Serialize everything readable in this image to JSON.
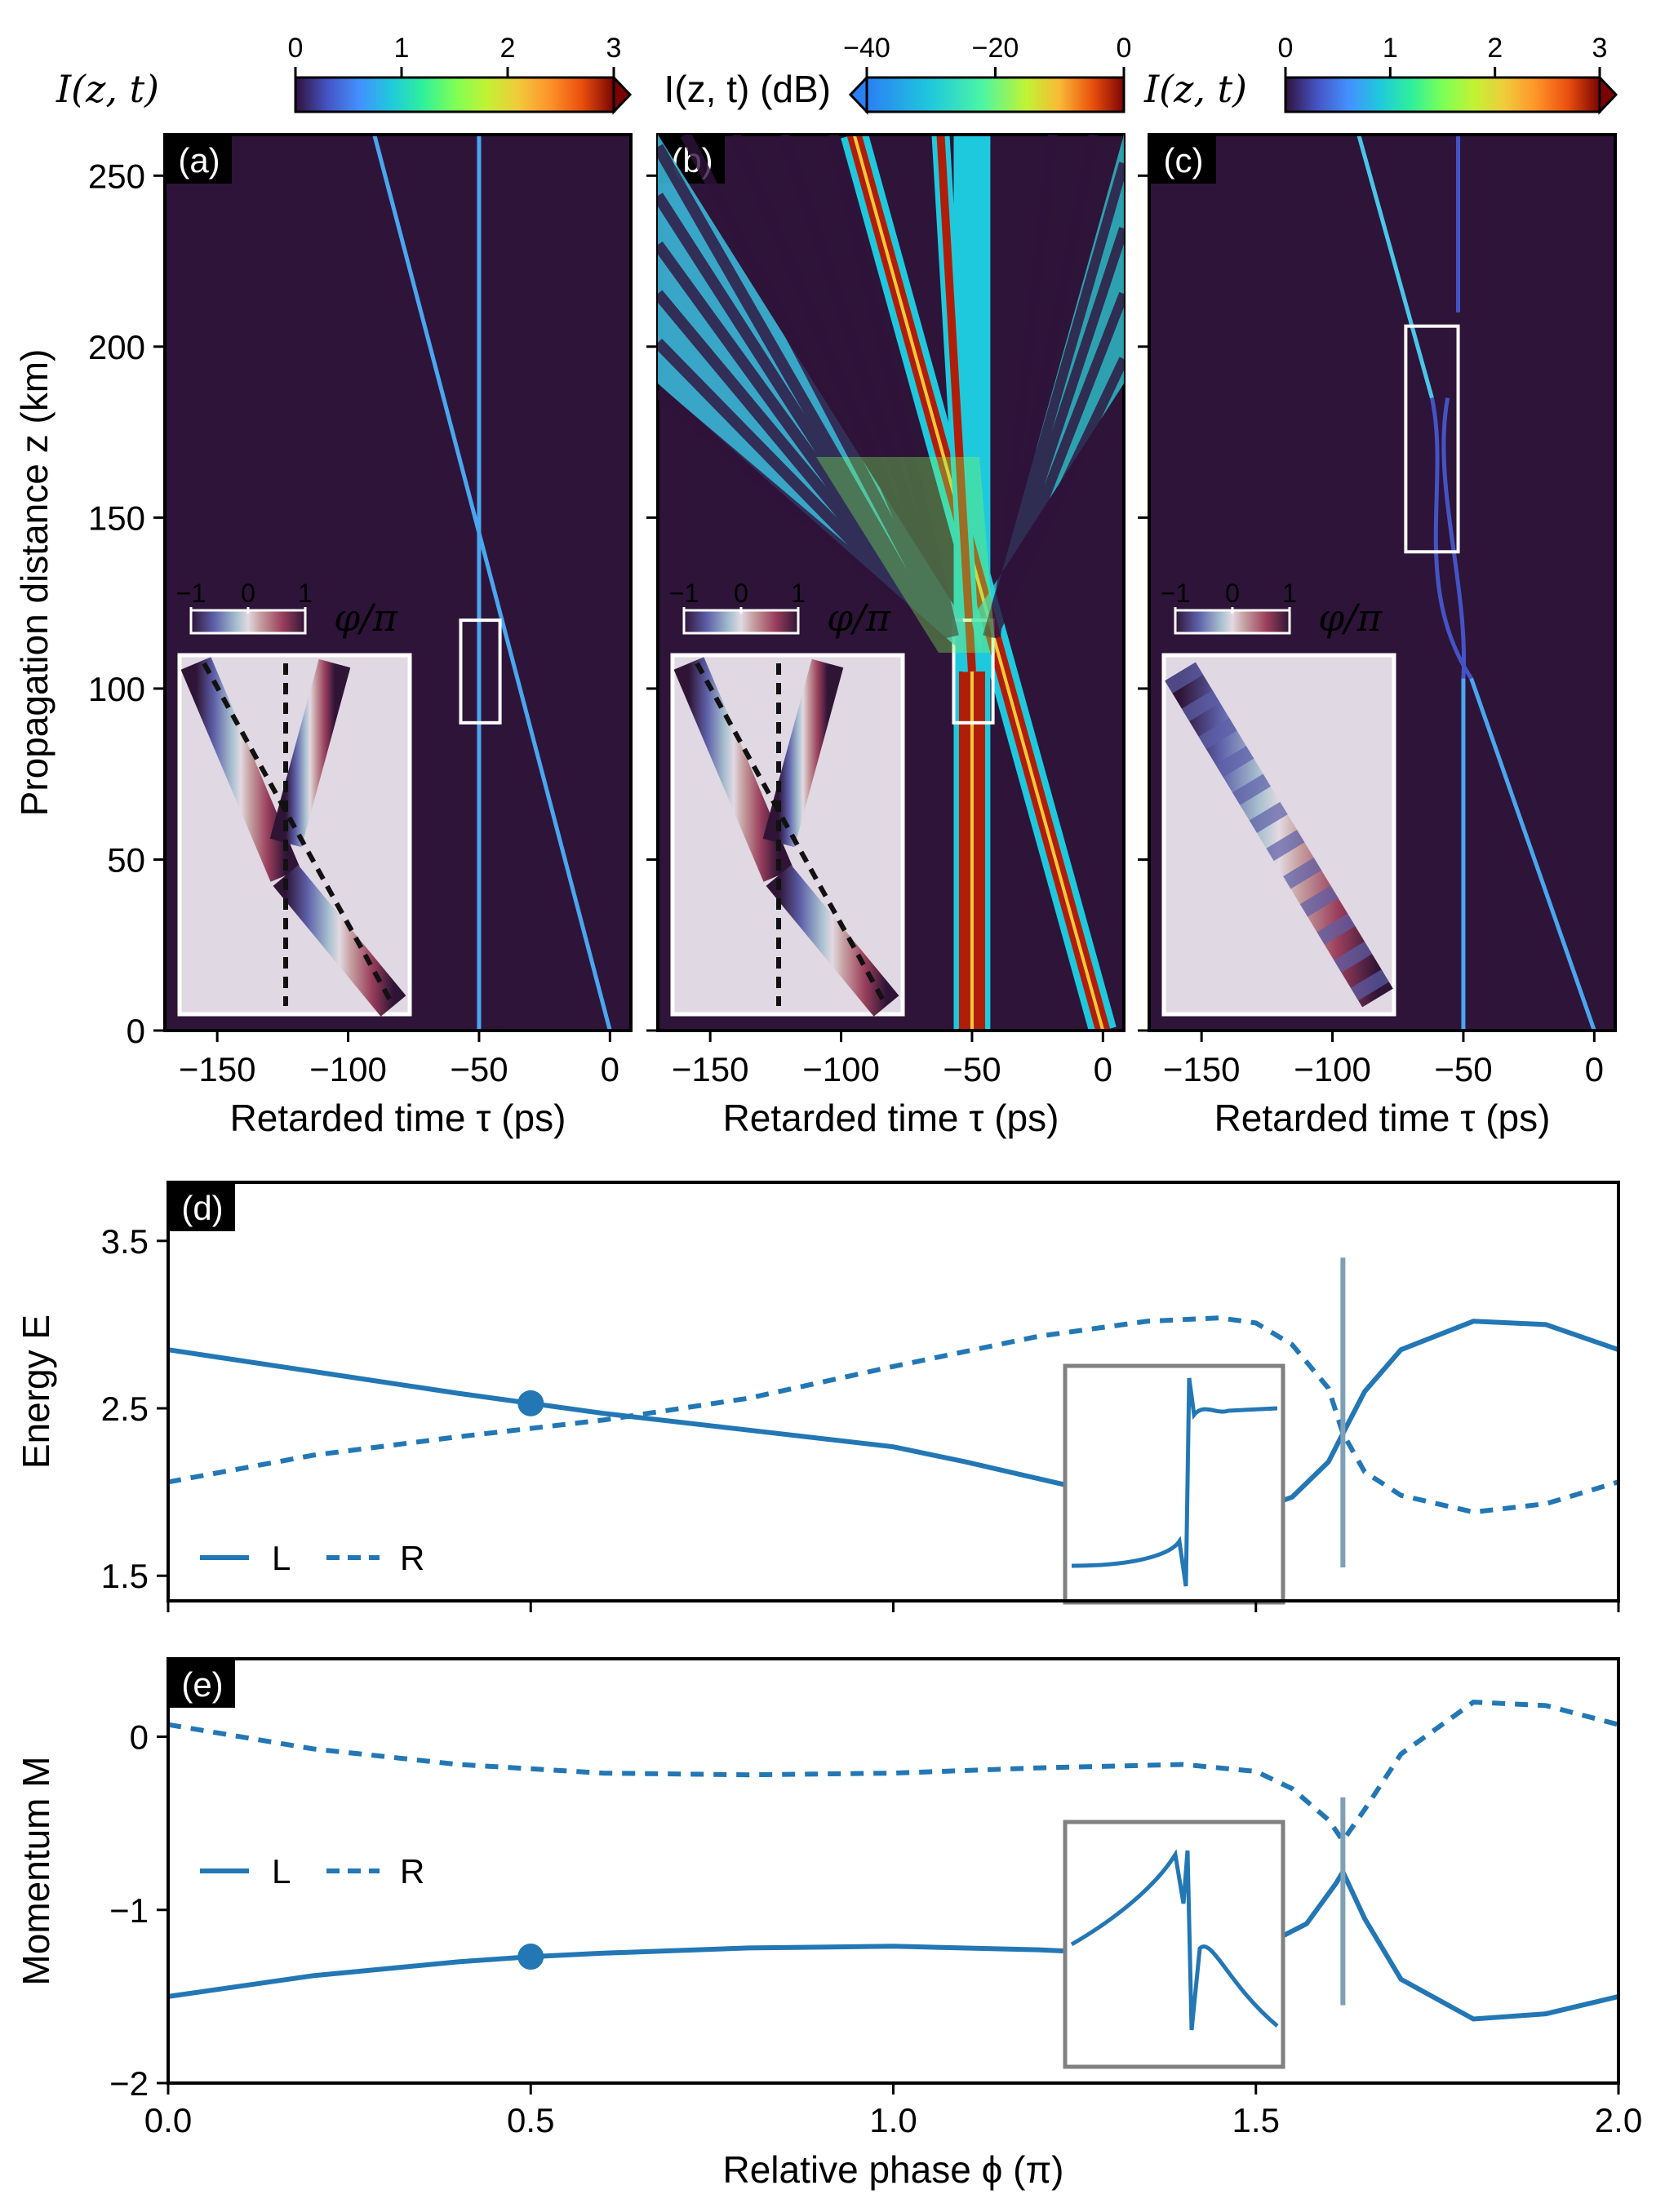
{
  "chart_data": [
    {
      "id": "a",
      "type": "heatmap",
      "panel_label": "(a)",
      "colorbar": {
        "label": "I(z, t)",
        "ticks": [
          "0",
          "1",
          "2",
          "3"
        ],
        "range": [
          0,
          3
        ],
        "colormap": "turbo"
      },
      "xlabel": "Retarded time τ (ps)",
      "ylabel": "Propagation distance z (km)",
      "xlim": [
        -170,
        8
      ],
      "ylim": [
        0,
        262
      ],
      "xticks": [
        -150,
        -100,
        -50,
        0
      ],
      "xtick_labels": [
        "−150",
        "−100",
        "−50",
        "0"
      ],
      "yticks": [
        0,
        50,
        100,
        150,
        200,
        250
      ],
      "ytick_labels": [
        "0",
        "50",
        "100",
        "150",
        "200",
        "250"
      ],
      "tracks": [
        {
          "name": "vertical soliton",
          "points": [
            [
              -50,
              0
            ],
            [
              -50,
              262
            ]
          ]
        },
        {
          "name": "moving soliton",
          "points": [
            [
              0,
              0
            ],
            [
              -90,
              262
            ]
          ]
        }
      ],
      "zoom_box": {
        "x": [
          -57,
          -42
        ],
        "z": [
          90,
          120
        ]
      },
      "inset": {
        "colorbar_label": "φ/π",
        "colorbar_ticks": [
          "−1",
          "0",
          "1"
        ]
      }
    },
    {
      "id": "b",
      "type": "heatmap",
      "panel_label": "(b)",
      "colorbar": {
        "label": "I(z, t) (dB)",
        "ticks": [
          "−40",
          "−20",
          "0"
        ],
        "range": [
          -40,
          0
        ],
        "colormap": "turbo"
      },
      "xlabel": "Retarded time τ (ps)",
      "xlim": [
        -170,
        8
      ],
      "ylim": [
        0,
        262
      ],
      "xticks": [
        -150,
        -100,
        -50,
        0
      ],
      "xtick_labels": [
        "−150",
        "−100",
        "−50",
        "0"
      ],
      "zoom_box": {
        "x": [
          -57,
          -42
        ],
        "z": [
          90,
          120
        ]
      },
      "inset": {
        "colorbar_label": "φ/π",
        "colorbar_ticks": [
          "−1",
          "0",
          "1"
        ]
      }
    },
    {
      "id": "c",
      "type": "heatmap",
      "panel_label": "(c)",
      "colorbar": {
        "label": "I(z, t)",
        "ticks": [
          "0",
          "1",
          "2",
          "3"
        ],
        "range": [
          0,
          3
        ],
        "colormap": "turbo"
      },
      "xlabel": "Retarded time τ (ps)",
      "xlim": [
        -170,
        8
      ],
      "ylim": [
        0,
        262
      ],
      "xticks": [
        -150,
        -100,
        -50,
        0
      ],
      "xtick_labels": [
        "−150",
        "−100",
        "−50",
        "0"
      ],
      "zoom_box": {
        "x": [
          -72,
          -52
        ],
        "z": [
          140,
          206
        ]
      },
      "inset": {
        "colorbar_label": "φ/π",
        "colorbar_ticks": [
          "−1",
          "0",
          "1"
        ]
      }
    },
    {
      "id": "d",
      "type": "line",
      "panel_label": "(d)",
      "xlabel": "",
      "ylabel": "Energy E",
      "xlim": [
        0,
        2
      ],
      "ylim": [
        1.35,
        3.85
      ],
      "yticks": [
        1.5,
        2.5,
        3.5
      ],
      "ytick_labels": [
        "1.5",
        "2.5",
        "3.5"
      ],
      "legend": {
        "entries": [
          "L",
          "R"
        ],
        "position": "lower-left"
      },
      "series": [
        {
          "name": "L",
          "style": "solid",
          "x": [
            0,
            0.2,
            0.4,
            0.5,
            0.6,
            0.8,
            1.0,
            1.1,
            1.2,
            1.3,
            1.4,
            1.5,
            1.55,
            1.6,
            1.62,
            1.65,
            1.7,
            1.8,
            1.9,
            2.0
          ],
          "y": [
            2.85,
            2.72,
            2.59,
            2.53,
            2.47,
            2.37,
            2.27,
            2.18,
            2.08,
            1.98,
            1.89,
            1.89,
            1.97,
            2.18,
            2.35,
            2.6,
            2.85,
            3.02,
            3.0,
            2.85
          ]
        },
        {
          "name": "R",
          "style": "dashed",
          "x": [
            0,
            0.2,
            0.4,
            0.5,
            0.6,
            0.8,
            1.0,
            1.2,
            1.35,
            1.45,
            1.5,
            1.55,
            1.6,
            1.62,
            1.65,
            1.7,
            1.8,
            1.9,
            2.0
          ],
          "y": [
            2.06,
            2.22,
            2.33,
            2.38,
            2.43,
            2.56,
            2.75,
            2.93,
            3.02,
            3.04,
            3.01,
            2.88,
            2.62,
            2.35,
            2.12,
            1.98,
            1.88,
            1.93,
            2.06
          ]
        }
      ],
      "marker": {
        "x": 0.5,
        "y": 2.53
      },
      "spike": {
        "x": 1.62,
        "y_range": [
          1.55,
          3.4
        ]
      }
    },
    {
      "id": "e",
      "type": "line",
      "panel_label": "(e)",
      "xlabel": "Relative phase ϕ (π)",
      "ylabel": "Momentum M",
      "xlim": [
        0,
        2
      ],
      "ylim": [
        -2,
        0.45
      ],
      "xticks": [
        0,
        0.5,
        1.0,
        1.5,
        2.0
      ],
      "xtick_labels": [
        "0.0",
        "0.5",
        "1.0",
        "1.5",
        "2.0"
      ],
      "yticks": [
        -2,
        -1,
        0
      ],
      "ytick_labels": [
        "−2",
        "−1",
        "0"
      ],
      "legend": {
        "entries": [
          "L",
          "R"
        ],
        "position": "upper-left"
      },
      "series": [
        {
          "name": "L",
          "style": "solid",
          "x": [
            0,
            0.2,
            0.4,
            0.5,
            0.6,
            0.8,
            1.0,
            1.2,
            1.35,
            1.5,
            1.57,
            1.61,
            1.62,
            1.65,
            1.7,
            1.8,
            1.9,
            2.0
          ],
          "y": [
            -1.5,
            -1.38,
            -1.3,
            -1.27,
            -1.25,
            -1.22,
            -1.21,
            -1.23,
            -1.26,
            -1.23,
            -1.08,
            -0.85,
            -0.78,
            -1.05,
            -1.4,
            -1.63,
            -1.6,
            -1.5
          ]
        },
        {
          "name": "R",
          "style": "dashed",
          "x": [
            0,
            0.2,
            0.4,
            0.6,
            0.8,
            1.0,
            1.2,
            1.4,
            1.5,
            1.55,
            1.6,
            1.62,
            1.65,
            1.7,
            1.8,
            1.9,
            2.0
          ],
          "y": [
            0.07,
            -0.07,
            -0.16,
            -0.21,
            -0.22,
            -0.21,
            -0.18,
            -0.16,
            -0.2,
            -0.3,
            -0.48,
            -0.6,
            -0.42,
            -0.1,
            0.2,
            0.18,
            0.07
          ]
        }
      ],
      "marker": {
        "x": 0.5,
        "y": -1.27
      },
      "spike": {
        "x": 1.62,
        "y_range": [
          -0.35,
          -1.55
        ]
      }
    }
  ]
}
